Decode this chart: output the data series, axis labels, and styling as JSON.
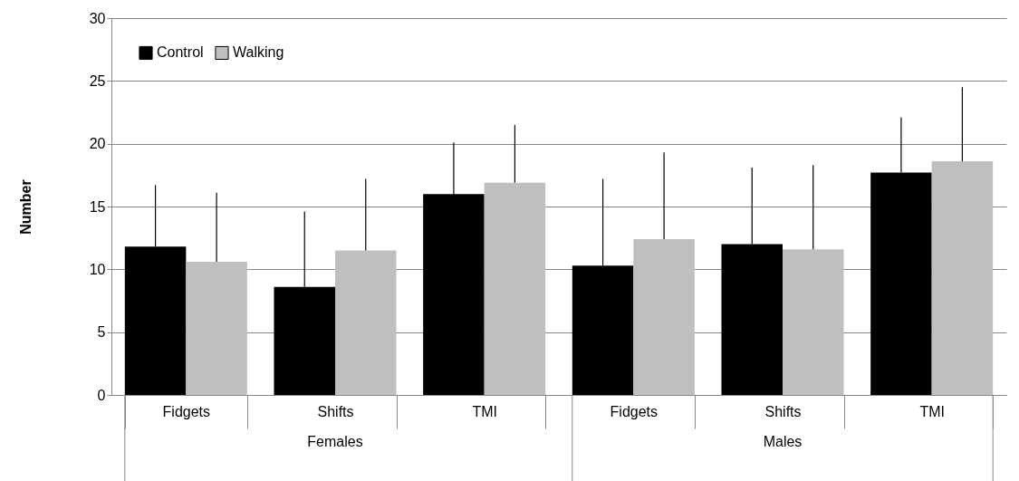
{
  "chart_data": {
    "type": "bar",
    "ylabel": "Number",
    "categories": [
      "Fidgets",
      "Shifts",
      "TMI",
      "Fidgets",
      "Shifts",
      "TMI"
    ],
    "series": [
      {
        "name": "Control",
        "color": "#000000",
        "values": [
          11.8,
          8.6,
          16.0,
          10.3,
          12.0,
          17.7
        ],
        "errors": [
          [
            11.8,
            16.7
          ],
          [
            8.6,
            14.6
          ],
          [
            16.0,
            20.1
          ],
          [
            10.3,
            17.2
          ],
          [
            12.0,
            18.1
          ],
          [
            17.7,
            22.1
          ]
        ]
      },
      {
        "name": "Walking",
        "color": "#bfbfbf",
        "values": [
          10.6,
          11.5,
          16.9,
          12.4,
          11.6,
          18.6
        ],
        "errors": [
          [
            10.6,
            16.1
          ],
          [
            11.5,
            17.2
          ],
          [
            16.9,
            21.5
          ],
          [
            12.4,
            19.3
          ],
          [
            11.6,
            18.3
          ],
          [
            18.6,
            24.5
          ]
        ]
      }
    ],
    "annotations": [
      "Females",
      "Males"
    ],
    "ylim": [
      0,
      30
    ],
    "yticks": [
      0,
      5,
      10,
      15,
      20,
      25,
      30
    ],
    "grid": "y",
    "legend": "top left"
  }
}
